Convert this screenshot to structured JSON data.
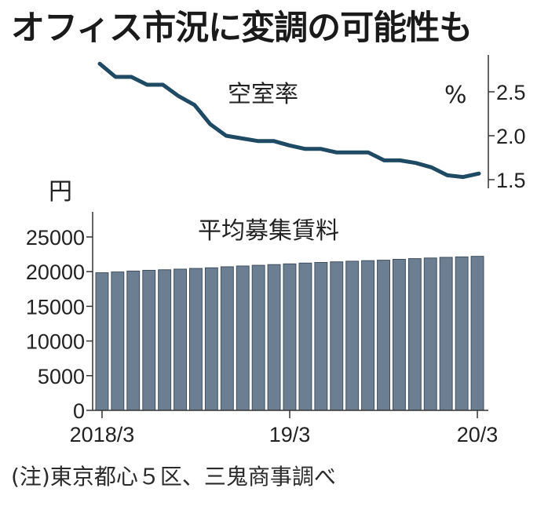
{
  "headline": "オフィス市況に変調の可能性も",
  "note": "(注)東京都心５区、三鬼商事調べ",
  "chart_data": [
    {
      "type": "line",
      "title": "空室率",
      "unit": "%",
      "x": [
        "2018/3",
        "2018/4",
        "2018/5",
        "2018/6",
        "2018/7",
        "2018/8",
        "2018/9",
        "2018/10",
        "2018/11",
        "2018/12",
        "2019/1",
        "2019/2",
        "2019/3",
        "2019/4",
        "2019/5",
        "2019/6",
        "2019/7",
        "2019/8",
        "2019/9",
        "2019/10",
        "2019/11",
        "2019/12",
        "2020/1",
        "2020/2",
        "2020/3"
      ],
      "values": [
        2.82,
        2.67,
        2.67,
        2.58,
        2.58,
        2.45,
        2.35,
        2.13,
        2.0,
        1.97,
        1.94,
        1.94,
        1.89,
        1.85,
        1.85,
        1.81,
        1.81,
        1.81,
        1.72,
        1.72,
        1.69,
        1.64,
        1.55,
        1.53,
        1.57
      ],
      "yticks": [
        "2.5",
        "2.0",
        "1.5"
      ],
      "ylim": [
        1.45,
        2.9
      ],
      "color": "#1e4a63"
    },
    {
      "type": "bar",
      "title": "平均募集賃料",
      "unit": "円",
      "categories": [
        "2018/3",
        "2018/4",
        "2018/5",
        "2018/6",
        "2018/7",
        "2018/8",
        "2018/9",
        "2018/10",
        "2018/11",
        "2018/12",
        "2019/1",
        "2019/2",
        "2019/3",
        "2019/4",
        "2019/5",
        "2019/6",
        "2019/7",
        "2019/8",
        "2019/9",
        "2019/10",
        "2019/11",
        "2019/12",
        "2020/1",
        "2020/2",
        "2020/3"
      ],
      "values": [
        19847,
        19960,
        20079,
        20187,
        20275,
        20364,
        20469,
        20557,
        20697,
        20815,
        20916,
        21016,
        21121,
        21230,
        21318,
        21413,
        21504,
        21587,
        21648,
        21771,
        21873,
        21973,
        22056,
        22131,
        22206
      ],
      "yticks": [
        "25000",
        "20000",
        "15000",
        "10000",
        "5000",
        "0"
      ],
      "ylim": [
        0,
        25000
      ],
      "color": "#6c7f92"
    }
  ],
  "x_axis_labels": [
    "2018/3",
    "19/3",
    "20/3"
  ]
}
